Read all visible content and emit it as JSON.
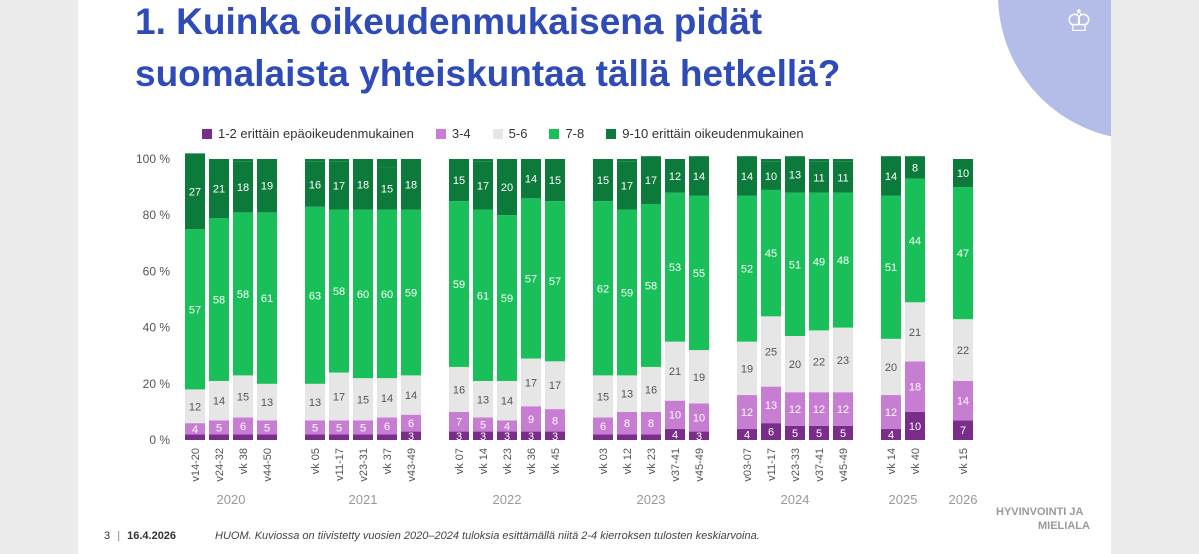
{
  "slide": {
    "title_line1": "1. Kuinka oikeudenmukaisena pidät",
    "title_line2": "suomalaista yhteiskuntaa tällä hetkellä?",
    "page_number": "3",
    "page_separator": "|",
    "date": "16.4.2026",
    "note": "HUOM. Kuviossa on tiivistetty vuosien 2020–2024 tuloksia esittämällä niitä 2-4 kierroksen tulosten keskiarvoina.",
    "brand_line1": "HYVINVOINTI JA",
    "brand_line2": "MIELIALA"
  },
  "chart_data": {
    "type": "bar",
    "stacked": true,
    "ylim": [
      0,
      100
    ],
    "yticks": [
      "0 %",
      "20 %",
      "40 %",
      "60 %",
      "80 %",
      "100 %"
    ],
    "legend_position": "top",
    "colors": [
      "#7b2d8b",
      "#c77dd1",
      "#e6e6e6",
      "#19c05a",
      "#0b7a3b"
    ],
    "series": [
      {
        "name": "1-2 erittäin epäoikeudenmukainen"
      },
      {
        "name": "3-4"
      },
      {
        "name": "5-6"
      },
      {
        "name": "7-8"
      },
      {
        "name": "9-10 erittäin oikeudenmukainen"
      }
    ],
    "groups": [
      {
        "year": "2020",
        "bars": [
          {
            "label": "v14-20",
            "values": [
              null,
              4,
              12,
              57,
              27
            ]
          },
          {
            "label": "v24-32",
            "values": [
              null,
              5,
              14,
              58,
              21
            ]
          },
          {
            "label": "vk 38",
            "values": [
              null,
              6,
              15,
              58,
              18
            ]
          },
          {
            "label": "v44-50",
            "values": [
              null,
              5,
              13,
              61,
              19
            ]
          }
        ]
      },
      {
        "year": "2021",
        "bars": [
          {
            "label": "vk 05",
            "values": [
              null,
              5,
              13,
              63,
              16
            ]
          },
          {
            "label": "v11-17",
            "values": [
              null,
              5,
              17,
              58,
              17
            ]
          },
          {
            "label": "v23-31",
            "values": [
              null,
              5,
              15,
              60,
              18
            ]
          },
          {
            "label": "vk 37",
            "values": [
              null,
              6,
              14,
              60,
              15
            ]
          },
          {
            "label": "v43-49",
            "values": [
              3,
              6,
              14,
              59,
              18
            ]
          }
        ]
      },
      {
        "year": "2022",
        "bars": [
          {
            "label": "vk 07",
            "values": [
              3,
              7,
              16,
              59,
              15
            ]
          },
          {
            "label": "vk 14",
            "values": [
              3,
              5,
              13,
              61,
              17
            ]
          },
          {
            "label": "vk 23",
            "values": [
              3,
              4,
              14,
              59,
              20
            ]
          },
          {
            "label": "vk 36",
            "values": [
              3,
              9,
              17,
              57,
              14
            ]
          },
          {
            "label": "vk 45",
            "values": [
              3,
              8,
              17,
              57,
              15
            ]
          }
        ]
      },
      {
        "year": "2023",
        "bars": [
          {
            "label": "vk 03",
            "values": [
              null,
              6,
              15,
              62,
              15
            ]
          },
          {
            "label": "vk 12",
            "values": [
              null,
              8,
              13,
              59,
              17
            ]
          },
          {
            "label": "vk 23",
            "values": [
              null,
              8,
              16,
              58,
              17
            ]
          },
          {
            "label": "v37-41",
            "values": [
              4,
              10,
              21,
              53,
              12
            ]
          },
          {
            "label": "v45-49",
            "values": [
              3,
              10,
              19,
              55,
              14
            ]
          }
        ]
      },
      {
        "year": "2024",
        "bars": [
          {
            "label": "v03-07",
            "values": [
              4,
              12,
              19,
              52,
              14
            ]
          },
          {
            "label": "v11-17",
            "values": [
              6,
              13,
              25,
              45,
              10
            ]
          },
          {
            "label": "v23-33",
            "values": [
              5,
              12,
              20,
              51,
              13
            ]
          },
          {
            "label": "v37-41",
            "values": [
              5,
              12,
              22,
              49,
              11
            ]
          },
          {
            "label": "v45-49",
            "values": [
              5,
              12,
              23,
              48,
              11
            ]
          }
        ]
      },
      {
        "year": "2025",
        "bars": [
          {
            "label": "vk 14",
            "values": [
              4,
              12,
              20,
              51,
              14
            ]
          },
          {
            "label": "vk 40",
            "values": [
              10,
              18,
              21,
              44,
              8
            ]
          }
        ]
      },
      {
        "year": "2026",
        "bars": [
          {
            "label": "vk 15",
            "values": [
              7,
              14,
              22,
              47,
              10
            ]
          }
        ]
      }
    ]
  }
}
